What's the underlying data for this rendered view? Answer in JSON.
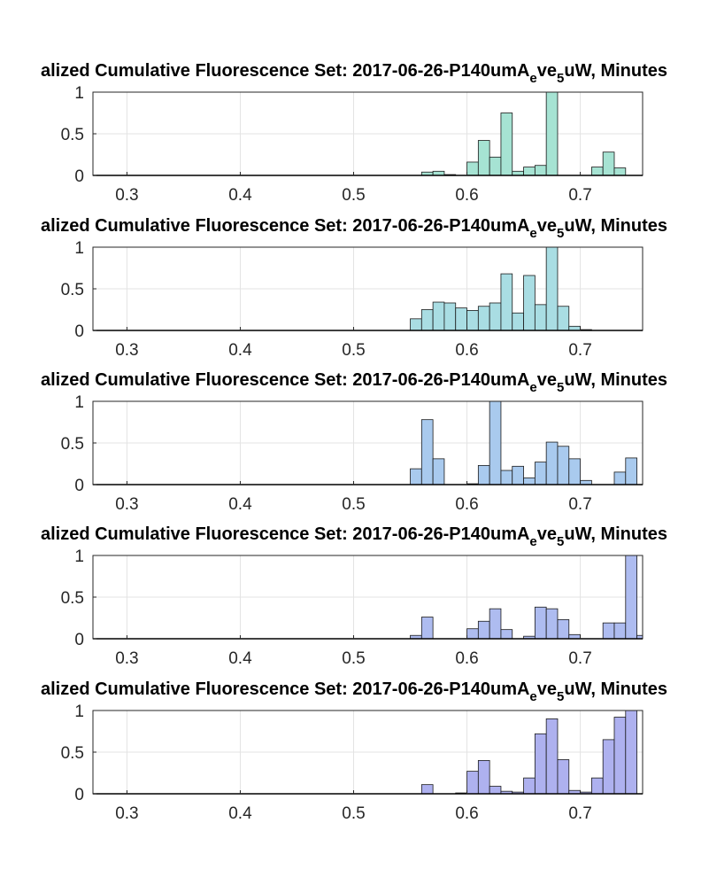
{
  "chart_data": [
    {
      "type": "bar",
      "title": {
        "prefix": "alized Cumulative Fluorescence Set: 2017-06-26-P140umA",
        "sub1": "e",
        "mid": "ve",
        "sub2": "5",
        "suffix": "uW, Minutes"
      },
      "xlim": [
        0.27,
        0.755
      ],
      "ylim": [
        0,
        1
      ],
      "xticks": [
        "0.3",
        "0.4",
        "0.5",
        "0.6",
        "0.7"
      ],
      "yticks": [
        "0",
        "0.5",
        "1"
      ],
      "grid": true,
      "color": "#a6e3d3",
      "bin_width": 0.01,
      "bins": [
        0.565,
        0.575,
        0.585,
        0.595,
        0.605,
        0.615,
        0.625,
        0.635,
        0.645,
        0.655,
        0.665,
        0.675,
        0.685,
        0.695,
        0.705,
        0.715,
        0.725,
        0.735,
        0.745
      ],
      "values": [
        0.04,
        0.05,
        0.01,
        0,
        0.16,
        0.42,
        0.22,
        0.75,
        0.05,
        0.1,
        0.12,
        1.0,
        0,
        0,
        0,
        0.1,
        0.28,
        0.09,
        0
      ]
    },
    {
      "type": "bar",
      "title": {
        "prefix": "alized Cumulative Fluorescence Set: 2017-06-26-P140umA",
        "sub1": "e",
        "mid": "ve",
        "sub2": "5",
        "suffix": "uW, Minutes"
      },
      "xlim": [
        0.27,
        0.755
      ],
      "ylim": [
        0,
        1
      ],
      "xticks": [
        "0.3",
        "0.4",
        "0.5",
        "0.6",
        "0.7"
      ],
      "yticks": [
        "0",
        "0.5",
        "1"
      ],
      "grid": true,
      "color": "#a9dde3",
      "bin_width": 0.01,
      "bins": [
        0.555,
        0.565,
        0.575,
        0.585,
        0.595,
        0.605,
        0.615,
        0.625,
        0.635,
        0.645,
        0.655,
        0.665,
        0.675,
        0.685,
        0.695,
        0.705
      ],
      "values": [
        0.14,
        0.25,
        0.34,
        0.33,
        0.27,
        0.24,
        0.29,
        0.33,
        0.68,
        0.21,
        0.66,
        0.31,
        1.0,
        0.29,
        0.05,
        0.01
      ]
    },
    {
      "type": "bar",
      "title": {
        "prefix": "alized Cumulative Fluorescence Set: 2017-06-26-P140umA",
        "sub1": "e",
        "mid": "ve",
        "sub2": "5",
        "suffix": "uW, Minutes"
      },
      "xlim": [
        0.27,
        0.755
      ],
      "ylim": [
        0,
        1
      ],
      "xticks": [
        "0.3",
        "0.4",
        "0.5",
        "0.6",
        "0.7"
      ],
      "yticks": [
        "0",
        "0.5",
        "1"
      ],
      "grid": true,
      "color": "#a9caee",
      "bin_width": 0.01,
      "bins": [
        0.555,
        0.565,
        0.575,
        0.585,
        0.595,
        0.605,
        0.615,
        0.625,
        0.635,
        0.645,
        0.655,
        0.665,
        0.675,
        0.685,
        0.695,
        0.705,
        0.715,
        0.725,
        0.735,
        0.745
      ],
      "values": [
        0.19,
        0.78,
        0.31,
        0,
        0,
        0.01,
        0.23,
        1.0,
        0.17,
        0.22,
        0.08,
        0.27,
        0.51,
        0.46,
        0.31,
        0.05,
        0,
        0,
        0.15,
        0.32
      ]
    },
    {
      "type": "bar",
      "title": {
        "prefix": "alized Cumulative Fluorescence Set: 2017-06-26-P140umA",
        "sub1": "e",
        "mid": "ve",
        "sub2": "5",
        "suffix": "uW, Minutes"
      },
      "xlim": [
        0.27,
        0.755
      ],
      "ylim": [
        0,
        1
      ],
      "xticks": [
        "0.3",
        "0.4",
        "0.5",
        "0.6",
        "0.7"
      ],
      "yticks": [
        "0",
        "0.5",
        "1"
      ],
      "grid": true,
      "color": "#aebcf0",
      "bin_width": 0.01,
      "bins": [
        0.555,
        0.565,
        0.575,
        0.585,
        0.595,
        0.605,
        0.615,
        0.625,
        0.635,
        0.645,
        0.655,
        0.665,
        0.675,
        0.685,
        0.695,
        0.705,
        0.715,
        0.725,
        0.735,
        0.745,
        0.755
      ],
      "values": [
        0.04,
        0.26,
        0,
        0,
        0,
        0.12,
        0.21,
        0.36,
        0.11,
        0,
        0.03,
        0.38,
        0.36,
        0.23,
        0.05,
        0,
        0,
        0.19,
        0.19,
        1.0,
        0.04
      ]
    },
    {
      "type": "bar",
      "title": {
        "prefix": "alized Cumulative Fluorescence Set: 2017-06-26-P140umA",
        "sub1": "e",
        "mid": "ve",
        "sub2": "5",
        "suffix": "uW, Minutes"
      },
      "xlim": [
        0.27,
        0.755
      ],
      "ylim": [
        0,
        1
      ],
      "xticks": [
        "0.3",
        "0.4",
        "0.5",
        "0.6",
        "0.7"
      ],
      "yticks": [
        "0",
        "0.5",
        "1"
      ],
      "grid": true,
      "color": "#aeb1ef",
      "bin_width": 0.01,
      "bins": [
        0.565,
        0.575,
        0.585,
        0.595,
        0.605,
        0.615,
        0.625,
        0.635,
        0.645,
        0.655,
        0.665,
        0.675,
        0.685,
        0.695,
        0.705,
        0.715,
        0.725,
        0.735,
        0.745
      ],
      "values": [
        0.11,
        0,
        0,
        0.01,
        0.27,
        0.4,
        0.09,
        0.03,
        0.02,
        0.19,
        0.72,
        0.9,
        0.41,
        0.04,
        0.02,
        0.19,
        0.65,
        0.92,
        1.0
      ]
    }
  ]
}
